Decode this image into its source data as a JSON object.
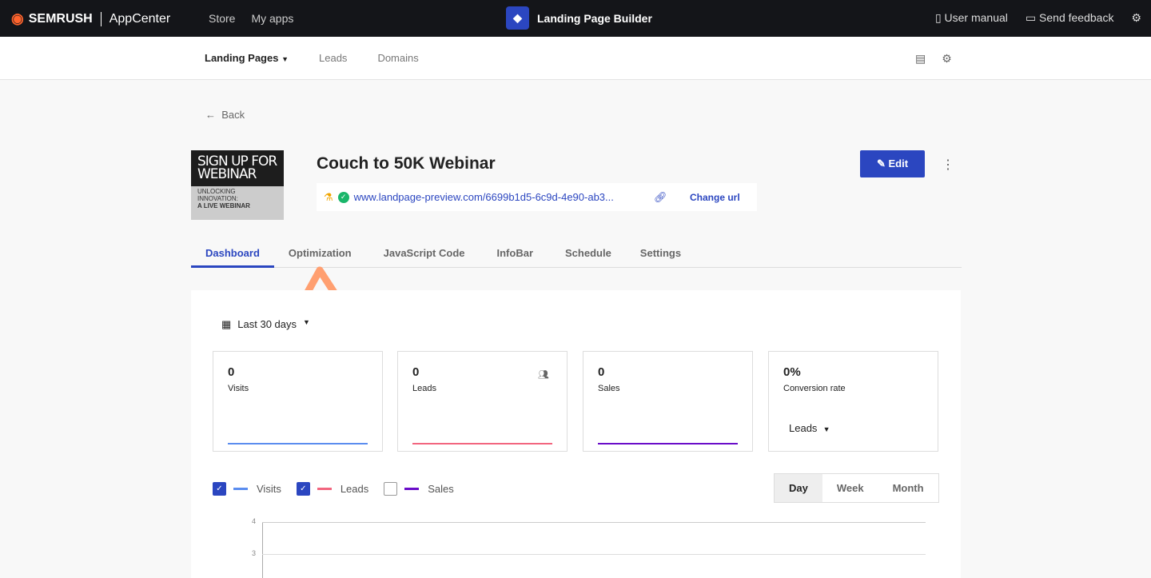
{
  "topbar": {
    "brand": "SEMRUSH",
    "appcenter": "AppCenter",
    "nav": [
      "Store",
      "My apps"
    ],
    "app_title": "Landing Page Builder",
    "user_manual": "User manual",
    "send_feedback": "Send feedback"
  },
  "subnav": {
    "items": [
      "Landing Pages",
      "Leads",
      "Domains"
    ],
    "active": "Landing Pages"
  },
  "back": "Back",
  "page": {
    "title": "Couch to 50K Webinar",
    "url": "www.landpage-preview.com/6699b1d5-6c9d-4e90-ab3...",
    "change_url": "Change url",
    "edit": "Edit",
    "thumb": {
      "headline": "SIGN UP FOR WEBINAR",
      "line1": "UNLOCKING INNOVATION:",
      "line2": "A LIVE WEBINAR"
    }
  },
  "tabs": [
    "Dashboard",
    "Optimization",
    "JavaScript Code",
    "InfoBar",
    "Schedule",
    "Settings"
  ],
  "dashboard": {
    "range": "Last 30 days",
    "stats": [
      {
        "value": "0",
        "label": "Visits",
        "color": "#5b8def"
      },
      {
        "value": "0",
        "label": "Leads",
        "color": "#f2667f"
      },
      {
        "value": "0",
        "label": "Sales",
        "color": "#6a0dc9"
      },
      {
        "value": "0%",
        "label": "Conversion rate",
        "select": "Leads"
      }
    ],
    "legend": [
      {
        "label": "Visits",
        "checked": true,
        "color": "#5b8def"
      },
      {
        "label": "Leads",
        "checked": true,
        "color": "#f2667f"
      },
      {
        "label": "Sales",
        "checked": false,
        "color": "#6a0dc9"
      }
    ],
    "granularity": [
      "Day",
      "Week",
      "Month"
    ],
    "active_granularity": "Day",
    "y_ticks": [
      "4",
      "3"
    ]
  },
  "annotation_color": "#ff9f70"
}
